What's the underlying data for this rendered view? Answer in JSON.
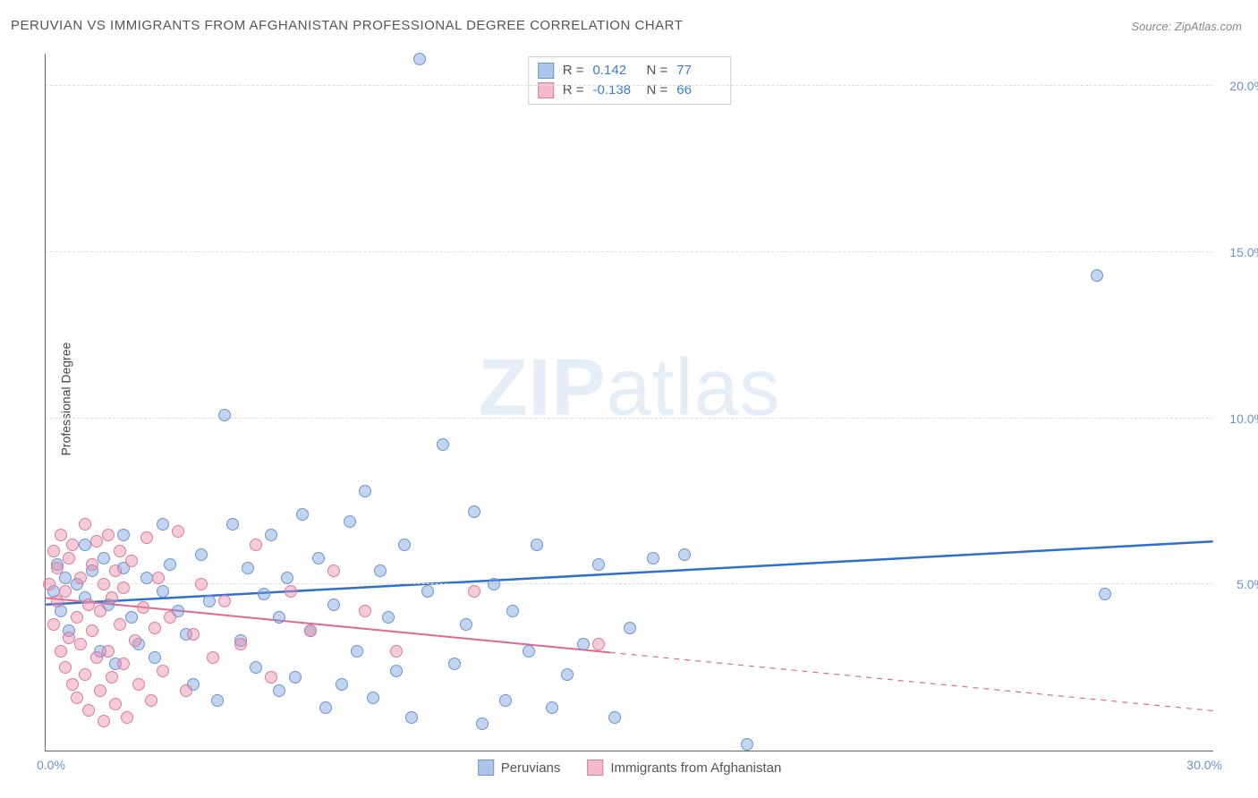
{
  "title": "PERUVIAN VS IMMIGRANTS FROM AFGHANISTAN PROFESSIONAL DEGREE CORRELATION CHART",
  "source": "Source: ZipAtlas.com",
  "watermark_bold": "ZIP",
  "watermark_light": "atlas",
  "ylabel": "Professional Degree",
  "chart": {
    "type": "scatter",
    "xlim": [
      0,
      30
    ],
    "ylim": [
      0,
      21
    ],
    "yticks": [
      5,
      10,
      15,
      20
    ],
    "ytick_labels": [
      "5.0%",
      "10.0%",
      "15.0%",
      "20.0%"
    ],
    "xlabel_start": "0.0%",
    "xlabel_end": "30.0%",
    "background_color": "#ffffff",
    "grid_color": "#dddddd",
    "axis_color": "#666666",
    "marker_radius": 7,
    "marker_border_width": 1.5,
    "series": [
      {
        "name": "Peruvians",
        "fill": "rgba(120,160,220,0.45)",
        "stroke": "#6c95cf",
        "swatch_fill": "#aec5ea",
        "swatch_border": "#6c95cf",
        "trend_color": "#2f6fd0",
        "trend_width": 2.5,
        "trend": {
          "x0": 0,
          "y0": 4.4,
          "x1": 30,
          "y1": 6.3,
          "dashed_from_x": null
        },
        "r_label": "R =",
        "r_value": "0.142",
        "n_label": "N =",
        "n_value": "77",
        "points": [
          [
            0.2,
            4.8
          ],
          [
            0.3,
            5.6
          ],
          [
            0.4,
            4.2
          ],
          [
            0.5,
            5.2
          ],
          [
            0.6,
            3.6
          ],
          [
            0.8,
            5.0
          ],
          [
            1.0,
            4.6
          ],
          [
            1.0,
            6.2
          ],
          [
            1.2,
            5.4
          ],
          [
            1.4,
            3.0
          ],
          [
            1.5,
            5.8
          ],
          [
            1.6,
            4.4
          ],
          [
            1.8,
            2.6
          ],
          [
            2.0,
            5.5
          ],
          [
            2.0,
            6.5
          ],
          [
            2.2,
            4.0
          ],
          [
            2.4,
            3.2
          ],
          [
            2.6,
            5.2
          ],
          [
            2.8,
            2.8
          ],
          [
            3.0,
            6.8
          ],
          [
            3.0,
            4.8
          ],
          [
            3.2,
            5.6
          ],
          [
            3.4,
            4.2
          ],
          [
            3.6,
            3.5
          ],
          [
            3.8,
            2.0
          ],
          [
            4.0,
            5.9
          ],
          [
            4.2,
            4.5
          ],
          [
            4.4,
            1.5
          ],
          [
            4.6,
            10.1
          ],
          [
            4.8,
            6.8
          ],
          [
            5.0,
            3.3
          ],
          [
            5.2,
            5.5
          ],
          [
            5.4,
            2.5
          ],
          [
            5.6,
            4.7
          ],
          [
            5.8,
            6.5
          ],
          [
            6.0,
            1.8
          ],
          [
            6.0,
            4.0
          ],
          [
            6.2,
            5.2
          ],
          [
            6.4,
            2.2
          ],
          [
            6.6,
            7.1
          ],
          [
            6.8,
            3.6
          ],
          [
            7.0,
            5.8
          ],
          [
            7.2,
            1.3
          ],
          [
            7.4,
            4.4
          ],
          [
            7.6,
            2.0
          ],
          [
            7.8,
            6.9
          ],
          [
            8.0,
            3.0
          ],
          [
            8.2,
            7.8
          ],
          [
            8.4,
            1.6
          ],
          [
            8.6,
            5.4
          ],
          [
            8.8,
            4.0
          ],
          [
            9.0,
            2.4
          ],
          [
            9.2,
            6.2
          ],
          [
            9.4,
            1.0
          ],
          [
            9.6,
            20.8
          ],
          [
            9.8,
            4.8
          ],
          [
            10.2,
            9.2
          ],
          [
            10.5,
            2.6
          ],
          [
            10.8,
            3.8
          ],
          [
            11.0,
            7.2
          ],
          [
            11.2,
            0.8
          ],
          [
            11.5,
            5.0
          ],
          [
            11.8,
            1.5
          ],
          [
            12.0,
            4.2
          ],
          [
            12.4,
            3.0
          ],
          [
            12.6,
            6.2
          ],
          [
            13.0,
            1.3
          ],
          [
            13.4,
            2.3
          ],
          [
            13.8,
            3.2
          ],
          [
            14.2,
            5.6
          ],
          [
            14.6,
            1.0
          ],
          [
            15.0,
            3.7
          ],
          [
            15.6,
            5.8
          ],
          [
            16.4,
            5.9
          ],
          [
            27.0,
            14.3
          ],
          [
            27.2,
            4.7
          ],
          [
            18.0,
            0.2
          ]
        ]
      },
      {
        "name": "Immigrants from Afghanistan",
        "fill": "rgba(235,140,170,0.45)",
        "stroke": "#d97ba0",
        "swatch_fill": "#f3b9cc",
        "swatch_border": "#d97ba0",
        "trend_color": "#e2678f",
        "trend_width": 2,
        "trend": {
          "x0": 0,
          "y0": 4.6,
          "x1": 30,
          "y1": 1.2,
          "dashed_from_x": 14.5
        },
        "r_label": "R =",
        "r_value": "-0.138",
        "n_label": "N =",
        "n_value": "66",
        "points": [
          [
            0.1,
            5.0
          ],
          [
            0.2,
            6.0
          ],
          [
            0.2,
            3.8
          ],
          [
            0.3,
            4.5
          ],
          [
            0.3,
            5.5
          ],
          [
            0.4,
            3.0
          ],
          [
            0.4,
            6.5
          ],
          [
            0.5,
            2.5
          ],
          [
            0.5,
            4.8
          ],
          [
            0.6,
            5.8
          ],
          [
            0.6,
            3.4
          ],
          [
            0.7,
            2.0
          ],
          [
            0.7,
            6.2
          ],
          [
            0.8,
            4.0
          ],
          [
            0.8,
            1.6
          ],
          [
            0.9,
            5.2
          ],
          [
            0.9,
            3.2
          ],
          [
            1.0,
            6.8
          ],
          [
            1.0,
            2.3
          ],
          [
            1.1,
            4.4
          ],
          [
            1.1,
            1.2
          ],
          [
            1.2,
            5.6
          ],
          [
            1.2,
            3.6
          ],
          [
            1.3,
            2.8
          ],
          [
            1.3,
            6.3
          ],
          [
            1.4,
            4.2
          ],
          [
            1.4,
            1.8
          ],
          [
            1.5,
            5.0
          ],
          [
            1.5,
            0.9
          ],
          [
            1.6,
            3.0
          ],
          [
            1.6,
            6.5
          ],
          [
            1.7,
            2.2
          ],
          [
            1.7,
            4.6
          ],
          [
            1.8,
            5.4
          ],
          [
            1.8,
            1.4
          ],
          [
            1.9,
            3.8
          ],
          [
            1.9,
            6.0
          ],
          [
            2.0,
            2.6
          ],
          [
            2.0,
            4.9
          ],
          [
            2.1,
            1.0
          ],
          [
            2.2,
            5.7
          ],
          [
            2.3,
            3.3
          ],
          [
            2.4,
            2.0
          ],
          [
            2.5,
            4.3
          ],
          [
            2.6,
            6.4
          ],
          [
            2.7,
            1.5
          ],
          [
            2.8,
            3.7
          ],
          [
            2.9,
            5.2
          ],
          [
            3.0,
            2.4
          ],
          [
            3.2,
            4.0
          ],
          [
            3.4,
            6.6
          ],
          [
            3.6,
            1.8
          ],
          [
            3.8,
            3.5
          ],
          [
            4.0,
            5.0
          ],
          [
            4.3,
            2.8
          ],
          [
            4.6,
            4.5
          ],
          [
            5.0,
            3.2
          ],
          [
            5.4,
            6.2
          ],
          [
            5.8,
            2.2
          ],
          [
            6.3,
            4.8
          ],
          [
            6.8,
            3.6
          ],
          [
            7.4,
            5.4
          ],
          [
            8.2,
            4.2
          ],
          [
            9.0,
            3.0
          ],
          [
            11.0,
            4.8
          ],
          [
            14.2,
            3.2
          ]
        ]
      }
    ]
  }
}
